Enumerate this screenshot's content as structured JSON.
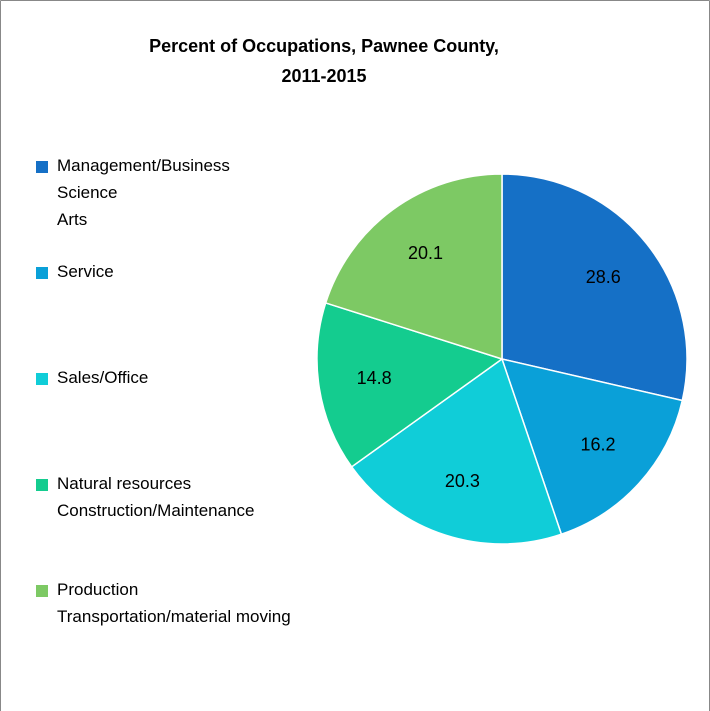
{
  "chart_data": {
    "type": "pie",
    "title": "Percent of Occupations, Pawnee County,\n2011-2015",
    "categories": [
      "Management/Business\nScience\nArts",
      "Service",
      "Sales/Office",
      "Natural resources\nConstruction/Maintenance",
      "Production\nTransportation/material moving"
    ],
    "values": [
      28.6,
      16.2,
      20.3,
      14.8,
      20.1
    ],
    "colors": [
      "#1570c6",
      "#0aa0d8",
      "#10cdd8",
      "#14cc8f",
      "#7dc964"
    ],
    "legend": "left"
  }
}
